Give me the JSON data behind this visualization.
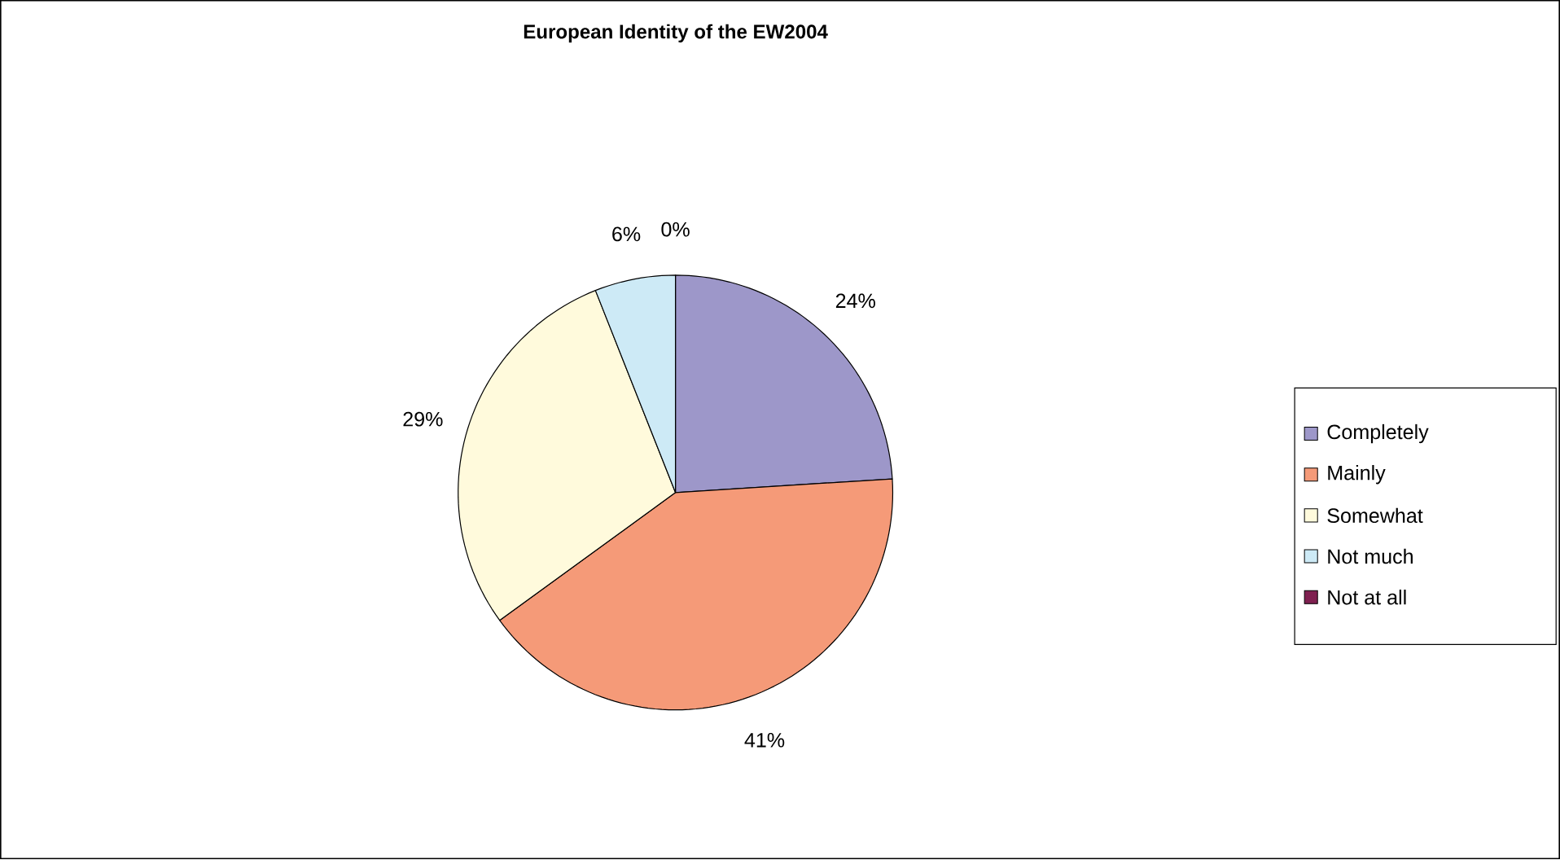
{
  "chart_data": {
    "type": "pie",
    "title": "European Identity of the EW2004",
    "categories": [
      "Completely",
      "Mainly",
      "Somewhat",
      "Not much",
      "Not at all"
    ],
    "values": [
      24,
      41,
      29,
      6,
      0
    ],
    "value_labels": [
      "24%",
      "41%",
      "29%",
      "6%",
      "0%"
    ],
    "colors": [
      "#9d97c9",
      "#f59a78",
      "#fffadc",
      "#cdeaf6",
      "#7f2050"
    ],
    "legend": "right"
  }
}
